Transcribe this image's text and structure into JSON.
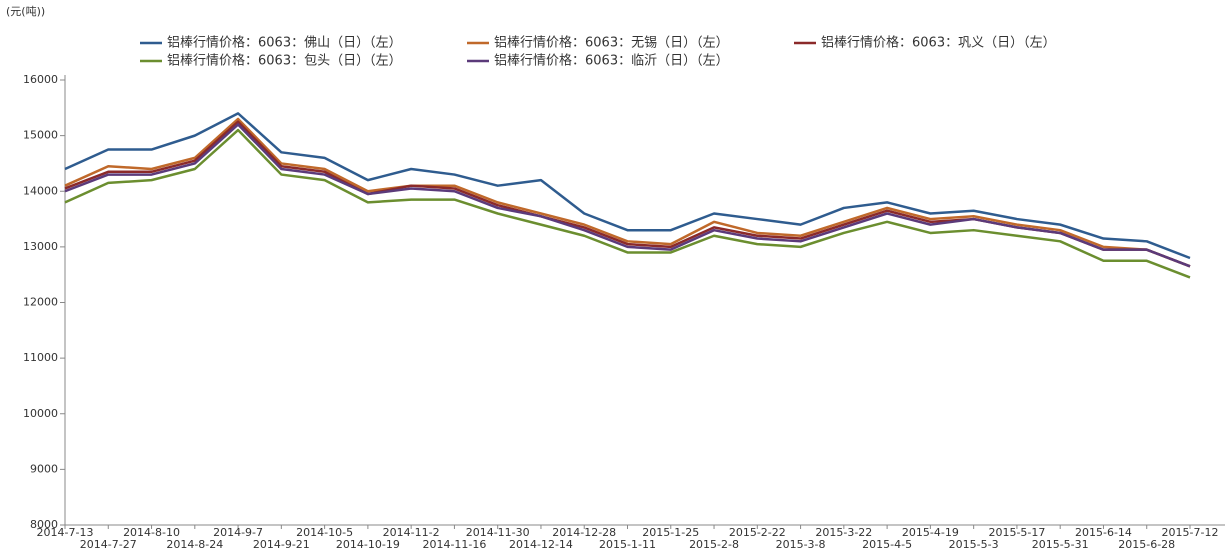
{
  "chart_data": {
    "type": "line",
    "y_label": "(元(吨))",
    "categories": [
      "2014-7-13",
      "2014-7-27",
      "2014-8-10",
      "2014-8-24",
      "2014-9-7",
      "2014-9-21",
      "2014-10-5",
      "2014-10-19",
      "2014-11-2",
      "2014-11-16",
      "2014-11-30",
      "2014-12-14",
      "2014-12-28",
      "2015-1-11",
      "2015-1-25",
      "2015-2-8",
      "2015-2-22",
      "2015-3-8",
      "2015-3-22",
      "2015-4-5",
      "2015-4-19",
      "2015-5-3",
      "2015-5-17",
      "2015-5-31",
      "2015-6-14",
      "2015-6-28",
      "2015-7-12"
    ],
    "series": [
      {
        "name": "铝棒行情价格：6063：佛山（日）（左）",
        "color": "#2f5c8f",
        "values": [
          14400,
          14750,
          14750,
          15000,
          15400,
          14700,
          14600,
          14200,
          14400,
          14300,
          14100,
          14200,
          13600,
          13300,
          13300,
          13600,
          13500,
          13400,
          13700,
          13800,
          13600,
          13650,
          13500,
          13400,
          13150,
          13100,
          12800
        ]
      },
      {
        "name": "铝棒行情价格：6063：无锡（日）（左）",
        "color": "#c0692a",
        "values": [
          14100,
          14450,
          14400,
          14600,
          15300,
          14500,
          14400,
          14000,
          14100,
          14100,
          13800,
          13600,
          13400,
          13100,
          13050,
          13450,
          13250,
          13200,
          13450,
          13700,
          13500,
          13550,
          13400,
          13300,
          13000,
          12950,
          12650
        ]
      },
      {
        "name": "铝棒行情价格：6063：巩义（日）（左）",
        "color": "#8b2a2a",
        "values": [
          14050,
          14350,
          14350,
          14550,
          15250,
          14450,
          14350,
          13950,
          14100,
          14050,
          13750,
          13550,
          13350,
          13050,
          13000,
          13350,
          13200,
          13150,
          13400,
          13650,
          13450,
          13500,
          13350,
          13250,
          12950,
          12950,
          12650
        ]
      },
      {
        "name": "铝棒行情价格：6063：包头（日）（左）",
        "color": "#6b8e2f",
        "values": [
          13800,
          14150,
          14200,
          14400,
          15100,
          14300,
          14200,
          13800,
          13850,
          13850,
          13600,
          13400,
          13200,
          12900,
          12900,
          13200,
          13050,
          13000,
          13250,
          13450,
          13250,
          13300,
          13200,
          13100,
          12750,
          12750,
          12450
        ]
      },
      {
        "name": "铝棒行情价格：6063：临沂（日）（左）",
        "color": "#5b3a7a",
        "values": [
          14000,
          14300,
          14300,
          14500,
          15200,
          14400,
          14300,
          13950,
          14050,
          14000,
          13700,
          13550,
          13300,
          13000,
          12950,
          13300,
          13150,
          13100,
          13350,
          13600,
          13400,
          13500,
          13350,
          13250,
          12950,
          12950,
          12650
        ]
      }
    ],
    "ylim": [
      8000,
      16000
    ],
    "yticks": [
      8000,
      9000,
      10000,
      11000,
      12000,
      13000,
      14000,
      15000,
      16000
    ],
    "grid": false
  }
}
